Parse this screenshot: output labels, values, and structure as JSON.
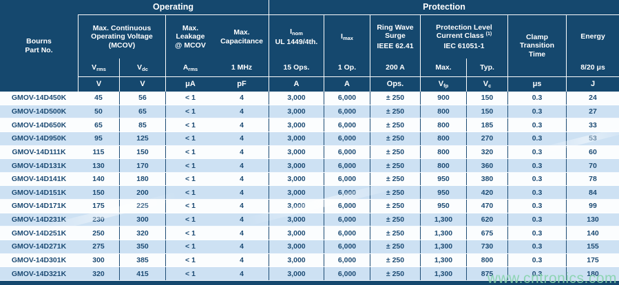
{
  "watermark": "www.cntronics.com",
  "header": {
    "part": "Bourns\nPart No.",
    "groups": {
      "operating": "Operating",
      "protection": "Protection"
    },
    "titles": {
      "mcov": "Max. Continuous\nOperating Voltage\n(MCOV)",
      "leakage": "Max.\nLeakage\n@ MCOV",
      "capacitance": "Max.\nCapacitance",
      "inom_base": "I",
      "inom_sub": "nom",
      "inom_line2": "UL 1449/4th.",
      "imax_base": "I",
      "imax_sub": "max",
      "ringwave": "Ring Wave\nSurge",
      "ringwave_std": "IEEE 62.41",
      "protlevel_l1": "Protection Level",
      "protlevel_l2": "Current Class",
      "protlevel_sup": "(1)",
      "protlevel_std": "IEC 61051-1",
      "clamp": "Clamp\nTransition\nTime",
      "energy": "Energy"
    },
    "subrow": {
      "vrms_base": "V",
      "vrms_sub": "rms",
      "vdc_base": "V",
      "vdc_sub": "dc",
      "arms_base": "A",
      "arms_sub": "rms",
      "mhz": "1 MHz",
      "ops15": "15 Ops.",
      "op1": "1 Op.",
      "a200": "200 A",
      "max": "Max.",
      "typ": "Typ.",
      "energy_cond": "8/20 μs"
    },
    "units": {
      "v1": "V",
      "v2": "V",
      "ua": "μA",
      "pf": "pF",
      "a1": "A",
      "a2": "A",
      "ops": "Ops.",
      "vfp_base": "V",
      "vfp_sub": "fp",
      "vc_base": "V",
      "vc_sub": "c",
      "us": "μs",
      "j": "J"
    }
  },
  "rows": [
    {
      "part": "GMOV-14D450K",
      "vrms": "45",
      "vdc": "56",
      "leak": "< 1",
      "cap": "4",
      "inom": "3,000",
      "imax": "6,000",
      "ring": "± 250",
      "vfp": "900",
      "vc": "150",
      "clamp": "0.3",
      "energy": "24"
    },
    {
      "part": "GMOV-14D500K",
      "vrms": "50",
      "vdc": "65",
      "leak": "< 1",
      "cap": "4",
      "inom": "3,000",
      "imax": "6,000",
      "ring": "± 250",
      "vfp": "800",
      "vc": "150",
      "clamp": "0.3",
      "energy": "27"
    },
    {
      "part": "GMOV-14D650K",
      "vrms": "65",
      "vdc": "85",
      "leak": "< 1",
      "cap": "4",
      "inom": "3,000",
      "imax": "6,000",
      "ring": "± 250",
      "vfp": "800",
      "vc": "185",
      "clamp": "0.3",
      "energy": "33"
    },
    {
      "part": "GMOV-14D950K",
      "vrms": "95",
      "vdc": "125",
      "leak": "< 1",
      "cap": "4",
      "inom": "3,000",
      "imax": "6,000",
      "ring": "± 250",
      "vfp": "800",
      "vc": "270",
      "clamp": "0.3",
      "energy": "53"
    },
    {
      "part": "GMOV-14D111K",
      "vrms": "115",
      "vdc": "150",
      "leak": "< 1",
      "cap": "4",
      "inom": "3,000",
      "imax": "6,000",
      "ring": "± 250",
      "vfp": "800",
      "vc": "320",
      "clamp": "0.3",
      "energy": "60"
    },
    {
      "part": "GMOV-14D131K",
      "vrms": "130",
      "vdc": "170",
      "leak": "< 1",
      "cap": "4",
      "inom": "3,000",
      "imax": "6,000",
      "ring": "± 250",
      "vfp": "800",
      "vc": "360",
      "clamp": "0.3",
      "energy": "70"
    },
    {
      "part": "GMOV-14D141K",
      "vrms": "140",
      "vdc": "180",
      "leak": "< 1",
      "cap": "4",
      "inom": "3,000",
      "imax": "6,000",
      "ring": "± 250",
      "vfp": "950",
      "vc": "380",
      "clamp": "0.3",
      "energy": "78"
    },
    {
      "part": "GMOV-14D151K",
      "vrms": "150",
      "vdc": "200",
      "leak": "< 1",
      "cap": "4",
      "inom": "3,000",
      "imax": "6,000",
      "ring": "± 250",
      "vfp": "950",
      "vc": "420",
      "clamp": "0.3",
      "energy": "84"
    },
    {
      "part": "GMOV-14D171K",
      "vrms": "175",
      "vdc": "225",
      "leak": "< 1",
      "cap": "4",
      "inom": "3,000",
      "imax": "6,000",
      "ring": "± 250",
      "vfp": "950",
      "vc": "470",
      "clamp": "0.3",
      "energy": "99"
    },
    {
      "part": "GMOV-14D231K",
      "vrms": "230",
      "vdc": "300",
      "leak": "< 1",
      "cap": "4",
      "inom": "3,000",
      "imax": "6,000",
      "ring": "± 250",
      "vfp": "1,300",
      "vc": "620",
      "clamp": "0.3",
      "energy": "130"
    },
    {
      "part": "GMOV-14D251K",
      "vrms": "250",
      "vdc": "320",
      "leak": "< 1",
      "cap": "4",
      "inom": "3,000",
      "imax": "6,000",
      "ring": "± 250",
      "vfp": "1,300",
      "vc": "675",
      "clamp": "0.3",
      "energy": "140"
    },
    {
      "part": "GMOV-14D271K",
      "vrms": "275",
      "vdc": "350",
      "leak": "< 1",
      "cap": "4",
      "inom": "3,000",
      "imax": "6,000",
      "ring": "± 250",
      "vfp": "1,300",
      "vc": "730",
      "clamp": "0.3",
      "energy": "155"
    },
    {
      "part": "GMOV-14D301K",
      "vrms": "300",
      "vdc": "385",
      "leak": "< 1",
      "cap": "4",
      "inom": "3,000",
      "imax": "6,000",
      "ring": "± 250",
      "vfp": "1,300",
      "vc": "800",
      "clamp": "0.3",
      "energy": "175"
    },
    {
      "part": "GMOV-14D321K",
      "vrms": "320",
      "vdc": "415",
      "leak": "< 1",
      "cap": "4",
      "inom": "3,000",
      "imax": "6,000",
      "ring": "± 250",
      "vfp": "1,300",
      "vc": "875",
      "clamp": "0.3",
      "energy": "180"
    }
  ]
}
